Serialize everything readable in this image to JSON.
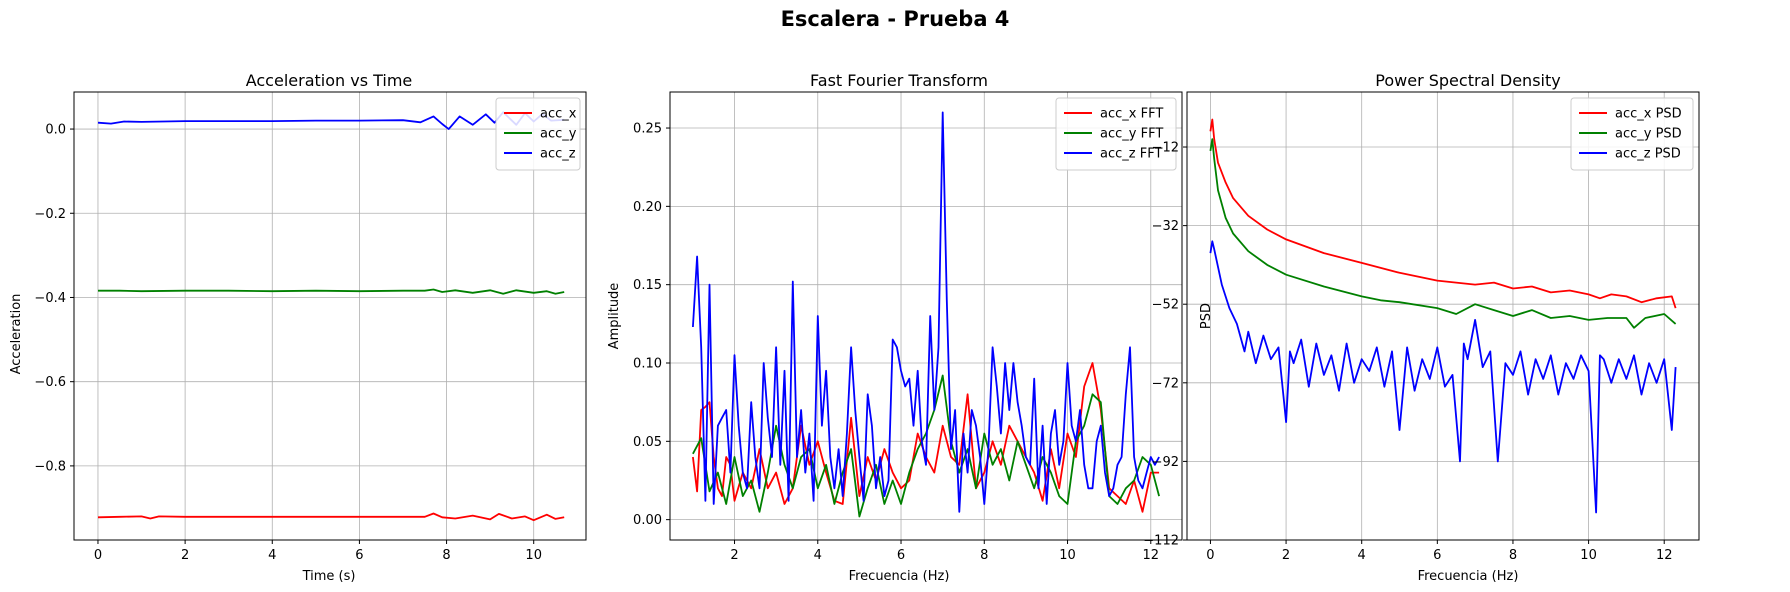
{
  "figure": {
    "title": "Escalera - Prueba 4"
  },
  "chart_data": [
    {
      "type": "line",
      "title": "Acceleration vs Time",
      "xlabel": "Time (s)",
      "ylabel": "Acceleration",
      "xlim": [
        -0.55,
        11.2
      ],
      "ylim": [
        -0.976,
        0.088
      ],
      "xticks": [
        0,
        2,
        4,
        6,
        8,
        10
      ],
      "xtick_labels": [
        "0",
        "2",
        "4",
        "6",
        "8",
        "10"
      ],
      "yticks": [
        0.0,
        -0.2,
        -0.4,
        -0.6,
        -0.8
      ],
      "ytick_labels": [
        "0.0",
        "−0.2",
        "−0.4",
        "−0.6",
        "−0.8"
      ],
      "grid": true,
      "legend_position": "top-right",
      "series": [
        {
          "name": "acc_x",
          "color": "#ff0000",
          "x": [
            0,
            0.5,
            1.0,
            1.2,
            1.4,
            2.0,
            3.0,
            4.0,
            5.0,
            6.0,
            7.0,
            7.5,
            7.7,
            7.9,
            8.2,
            8.6,
            9.0,
            9.2,
            9.5,
            9.8,
            10.0,
            10.3,
            10.5,
            10.7
          ],
          "y": [
            -0.922,
            -0.921,
            -0.92,
            -0.925,
            -0.92,
            -0.921,
            -0.921,
            -0.921,
            -0.921,
            -0.921,
            -0.921,
            -0.921,
            -0.913,
            -0.922,
            -0.925,
            -0.918,
            -0.927,
            -0.914,
            -0.925,
            -0.92,
            -0.929,
            -0.916,
            -0.926,
            -0.922
          ]
        },
        {
          "name": "acc_y",
          "color": "#008000",
          "x": [
            0,
            0.5,
            1.0,
            2.0,
            3.0,
            4.0,
            5.0,
            6.0,
            7.0,
            7.5,
            7.7,
            7.9,
            8.2,
            8.6,
            9.0,
            9.3,
            9.6,
            10.0,
            10.3,
            10.5,
            10.7
          ],
          "y": [
            -0.384,
            -0.384,
            -0.385,
            -0.384,
            -0.384,
            -0.385,
            -0.384,
            -0.385,
            -0.384,
            -0.384,
            -0.381,
            -0.387,
            -0.383,
            -0.389,
            -0.383,
            -0.391,
            -0.383,
            -0.389,
            -0.385,
            -0.391,
            -0.387
          ]
        },
        {
          "name": "acc_z",
          "color": "#0000ff",
          "x": [
            0,
            0.3,
            0.6,
            1.0,
            2.0,
            3.0,
            4.0,
            5.0,
            6.0,
            7.0,
            7.4,
            7.7,
            7.9,
            8.05,
            8.3,
            8.6,
            8.9,
            9.1,
            9.3,
            9.6,
            9.8,
            10.0,
            10.2,
            10.4,
            10.7
          ],
          "y": [
            0.015,
            0.013,
            0.018,
            0.017,
            0.019,
            0.019,
            0.019,
            0.02,
            0.02,
            0.021,
            0.016,
            0.03,
            0.012,
            0.0,
            0.03,
            0.01,
            0.035,
            0.015,
            0.04,
            0.01,
            0.038,
            0.018,
            0.036,
            0.02,
            0.022
          ]
        }
      ]
    },
    {
      "type": "line",
      "title": "Fast Fourier Transform",
      "xlabel": "Frecuencia (Hz)",
      "ylabel": "Amplitude",
      "xlim": [
        0.45,
        12.75
      ],
      "ylim": [
        -0.013,
        0.273
      ],
      "xticks": [
        2,
        4,
        6,
        8,
        10,
        12
      ],
      "xtick_labels": [
        "2",
        "4",
        "6",
        "8",
        "10",
        "12"
      ],
      "yticks": [
        0.0,
        0.05,
        0.1,
        0.15,
        0.2,
        0.25
      ],
      "ytick_labels": [
        "0.00",
        "0.05",
        "0.10",
        "0.15",
        "0.20",
        "0.25"
      ],
      "grid": true,
      "legend_position": "top-right",
      "series": [
        {
          "name": "acc_x FFT",
          "color": "#ff0000",
          "x": [
            1.0,
            1.1,
            1.2,
            1.3,
            1.4,
            1.5,
            1.6,
            1.7,
            1.8,
            1.9,
            2.0,
            2.2,
            2.4,
            2.6,
            2.8,
            3.0,
            3.2,
            3.4,
            3.6,
            3.8,
            4.0,
            4.2,
            4.4,
            4.6,
            4.8,
            5.0,
            5.2,
            5.4,
            5.6,
            5.8,
            6.0,
            6.2,
            6.4,
            6.6,
            6.8,
            7.0,
            7.2,
            7.4,
            7.6,
            7.8,
            8.0,
            8.2,
            8.4,
            8.6,
            8.8,
            9.0,
            9.2,
            9.4,
            9.6,
            9.8,
            10.0,
            10.2,
            10.4,
            10.6,
            10.8,
            11.0,
            11.2,
            11.4,
            11.6,
            11.8,
            12.0,
            12.2
          ],
          "y": [
            0.04,
            0.018,
            0.07,
            0.072,
            0.075,
            0.04,
            0.02,
            0.015,
            0.04,
            0.035,
            0.012,
            0.03,
            0.02,
            0.045,
            0.02,
            0.03,
            0.01,
            0.02,
            0.06,
            0.035,
            0.05,
            0.03,
            0.012,
            0.01,
            0.065,
            0.015,
            0.04,
            0.025,
            0.045,
            0.03,
            0.02,
            0.025,
            0.055,
            0.04,
            0.03,
            0.06,
            0.04,
            0.035,
            0.08,
            0.02,
            0.03,
            0.05,
            0.035,
            0.06,
            0.05,
            0.04,
            0.03,
            0.012,
            0.045,
            0.02,
            0.055,
            0.04,
            0.085,
            0.1,
            0.07,
            0.02,
            0.015,
            0.01,
            0.025,
            0.005,
            0.03,
            0.03
          ]
        },
        {
          "name": "acc_y FFT",
          "color": "#008000",
          "x": [
            1.0,
            1.2,
            1.4,
            1.6,
            1.8,
            2.0,
            2.2,
            2.4,
            2.6,
            2.8,
            3.0,
            3.2,
            3.4,
            3.6,
            3.8,
            4.0,
            4.2,
            4.4,
            4.6,
            4.8,
            5.0,
            5.2,
            5.4,
            5.6,
            5.8,
            6.0,
            6.2,
            6.4,
            6.6,
            6.8,
            7.0,
            7.2,
            7.4,
            7.6,
            7.8,
            8.0,
            8.2,
            8.4,
            8.6,
            8.8,
            9.0,
            9.2,
            9.4,
            9.6,
            9.8,
            10.0,
            10.2,
            10.4,
            10.6,
            10.8,
            11.0,
            11.2,
            11.4,
            11.6,
            11.8,
            12.0,
            12.2
          ],
          "y": [
            0.042,
            0.052,
            0.018,
            0.03,
            0.01,
            0.04,
            0.015,
            0.025,
            0.005,
            0.03,
            0.06,
            0.035,
            0.02,
            0.04,
            0.045,
            0.02,
            0.035,
            0.01,
            0.03,
            0.045,
            0.002,
            0.02,
            0.035,
            0.01,
            0.025,
            0.01,
            0.03,
            0.045,
            0.055,
            0.07,
            0.092,
            0.05,
            0.03,
            0.045,
            0.02,
            0.055,
            0.035,
            0.045,
            0.025,
            0.05,
            0.035,
            0.02,
            0.04,
            0.03,
            0.015,
            0.01,
            0.05,
            0.06,
            0.08,
            0.075,
            0.015,
            0.01,
            0.02,
            0.025,
            0.04,
            0.035,
            0.015
          ]
        },
        {
          "name": "acc_z FFT",
          "color": "#0000ff",
          "x": [
            1.0,
            1.1,
            1.2,
            1.3,
            1.4,
            1.5,
            1.6,
            1.7,
            1.8,
            1.9,
            2.0,
            2.1,
            2.2,
            2.3,
            2.4,
            2.5,
            2.6,
            2.7,
            2.8,
            2.9,
            3.0,
            3.1,
            3.2,
            3.3,
            3.4,
            3.5,
            3.6,
            3.7,
            3.8,
            3.9,
            4.0,
            4.1,
            4.2,
            4.3,
            4.4,
            4.5,
            4.6,
            4.7,
            4.8,
            4.9,
            5.0,
            5.1,
            5.2,
            5.3,
            5.4,
            5.5,
            5.6,
            5.7,
            5.8,
            5.9,
            6.0,
            6.1,
            6.2,
            6.3,
            6.4,
            6.5,
            6.6,
            6.7,
            6.8,
            6.9,
            7.0,
            7.1,
            7.2,
            7.3,
            7.4,
            7.5,
            7.6,
            7.7,
            7.8,
            7.9,
            8.0,
            8.1,
            8.2,
            8.3,
            8.4,
            8.5,
            8.6,
            8.7,
            8.8,
            8.9,
            9.0,
            9.1,
            9.2,
            9.3,
            9.4,
            9.5,
            9.6,
            9.7,
            9.8,
            9.9,
            10.0,
            10.1,
            10.2,
            10.3,
            10.4,
            10.5,
            10.6,
            10.7,
            10.8,
            10.9,
            11.0,
            11.1,
            11.2,
            11.3,
            11.4,
            11.5,
            11.6,
            11.7,
            11.8,
            11.9,
            12.0,
            12.1,
            12.2
          ],
          "y": [
            0.123,
            0.168,
            0.11,
            0.012,
            0.15,
            0.01,
            0.06,
            0.065,
            0.07,
            0.03,
            0.105,
            0.06,
            0.03,
            0.02,
            0.075,
            0.04,
            0.02,
            0.1,
            0.065,
            0.04,
            0.11,
            0.035,
            0.095,
            0.012,
            0.152,
            0.04,
            0.07,
            0.03,
            0.055,
            0.012,
            0.13,
            0.06,
            0.095,
            0.04,
            0.02,
            0.045,
            0.015,
            0.055,
            0.11,
            0.07,
            0.04,
            0.012,
            0.08,
            0.06,
            0.02,
            0.04,
            0.015,
            0.025,
            0.115,
            0.11,
            0.095,
            0.085,
            0.09,
            0.06,
            0.095,
            0.05,
            0.035,
            0.13,
            0.07,
            0.11,
            0.26,
            0.14,
            0.045,
            0.07,
            0.005,
            0.055,
            0.03,
            0.07,
            0.06,
            0.04,
            0.01,
            0.045,
            0.11,
            0.085,
            0.055,
            0.1,
            0.07,
            0.1,
            0.075,
            0.06,
            0.04,
            0.035,
            0.09,
            0.02,
            0.06,
            0.01,
            0.055,
            0.07,
            0.035,
            0.05,
            0.1,
            0.06,
            0.05,
            0.07,
            0.035,
            0.02,
            0.02,
            0.05,
            0.06,
            0.03,
            0.015,
            0.02,
            0.035,
            0.04,
            0.08,
            0.11,
            0.04,
            0.025,
            0.02,
            0.03,
            0.04,
            0.035,
            0.04
          ]
        }
      ]
    },
    {
      "type": "line",
      "title": "Power Spectral Density",
      "xlabel": "Frecuencia (Hz)",
      "ylabel": "PSD",
      "xlim": [
        -0.62,
        12.92
      ],
      "ylim": [
        -112,
        2
      ],
      "xticks": [
        0,
        2,
        4,
        6,
        8,
        10,
        12
      ],
      "xtick_labels": [
        "0",
        "2",
        "4",
        "6",
        "8",
        "10",
        "12"
      ],
      "yticks": [
        -12,
        -32,
        -52,
        -72,
        -92,
        -112
      ],
      "ytick_labels": [
        "−12",
        "−32",
        "−52",
        "−72",
        "−92",
        "−112"
      ],
      "grid": true,
      "legend_position": "top-right",
      "series": [
        {
          "name": "acc_x PSD",
          "color": "#ff0000",
          "x": [
            0,
            0.05,
            0.1,
            0.2,
            0.4,
            0.6,
            1.0,
            1.5,
            2.0,
            3.0,
            4.0,
            5.0,
            6.0,
            7.0,
            7.5,
            8.0,
            8.5,
            9.0,
            9.5,
            10.0,
            10.3,
            10.6,
            11.0,
            11.4,
            11.8,
            12.2,
            12.3
          ],
          "y": [
            -8,
            -5,
            -10,
            -16,
            -21,
            -25,
            -29.5,
            -33,
            -35.5,
            -39,
            -41.5,
            -44,
            -46,
            -47,
            -46.5,
            -48,
            -47.5,
            -49,
            -48.5,
            -49.5,
            -50.5,
            -49.5,
            -50,
            -51.5,
            -50.5,
            -50,
            -53
          ]
        },
        {
          "name": "acc_y PSD",
          "color": "#008000",
          "x": [
            0,
            0.05,
            0.1,
            0.2,
            0.4,
            0.6,
            1.0,
            1.5,
            2.0,
            3.0,
            4.0,
            4.5,
            5.0,
            6.0,
            6.5,
            7.0,
            7.5,
            8.0,
            8.5,
            9.0,
            9.5,
            10.0,
            10.5,
            11.0,
            11.2,
            11.5,
            12.0,
            12.3
          ],
          "y": [
            -13,
            -10,
            -15,
            -23,
            -30,
            -34,
            -38.5,
            -42,
            -44.5,
            -47.5,
            -50,
            -51,
            -51.5,
            -53,
            -54.5,
            -52,
            -53.5,
            -55,
            -53.5,
            -55.5,
            -55,
            -56,
            -55.5,
            -55.5,
            -58,
            -55.5,
            -54.5,
            -57
          ]
        },
        {
          "name": "acc_z PSD",
          "color": "#0000ff",
          "x": [
            0,
            0.05,
            0.1,
            0.3,
            0.5,
            0.7,
            0.9,
            1.0,
            1.2,
            1.4,
            1.6,
            1.8,
            2.0,
            2.1,
            2.2,
            2.4,
            2.6,
            2.8,
            3.0,
            3.2,
            3.4,
            3.6,
            3.8,
            4.0,
            4.2,
            4.4,
            4.6,
            4.8,
            5.0,
            5.2,
            5.4,
            5.6,
            5.8,
            6.0,
            6.2,
            6.4,
            6.6,
            6.7,
            6.8,
            7.0,
            7.2,
            7.4,
            7.6,
            7.8,
            8.0,
            8.2,
            8.4,
            8.6,
            8.8,
            9.0,
            9.2,
            9.4,
            9.6,
            9.8,
            10.0,
            10.2,
            10.3,
            10.4,
            10.6,
            10.8,
            11.0,
            11.2,
            11.4,
            11.6,
            11.8,
            12.0,
            12.2,
            12.3
          ],
          "y": [
            -39,
            -36,
            -38,
            -47,
            -53,
            -57,
            -64,
            -59,
            -67,
            -60,
            -66,
            -63,
            -82,
            -64,
            -67,
            -61,
            -73,
            -62,
            -70,
            -65,
            -74,
            -62,
            -72,
            -66,
            -69,
            -63,
            -73,
            -64,
            -84,
            -63,
            -74,
            -66,
            -71,
            -63,
            -73,
            -70,
            -92,
            -62,
            -66,
            -56,
            -68,
            -64,
            -92,
            -67,
            -70,
            -64,
            -75,
            -66,
            -71,
            -65,
            -75,
            -67,
            -71,
            -65,
            -69,
            -105,
            -65,
            -66,
            -72,
            -66,
            -71,
            -65,
            -75,
            -67,
            -72,
            -66,
            -84,
            -68
          ]
        }
      ]
    }
  ]
}
